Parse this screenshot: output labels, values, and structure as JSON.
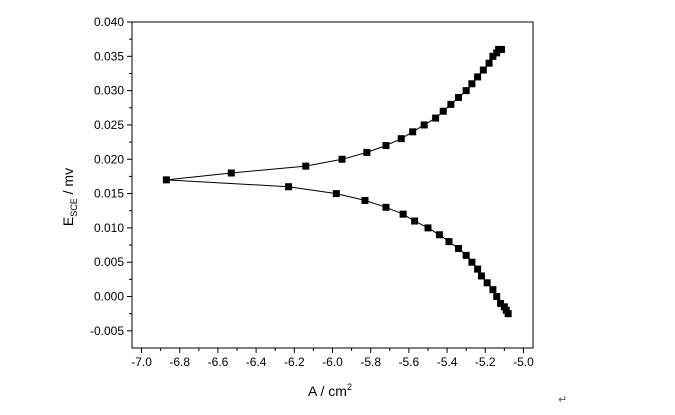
{
  "chart_data": {
    "type": "scatter",
    "title": "",
    "xlabel_main": "A / cm",
    "xlabel_sup": "2",
    "ylabel_main": "E",
    "ylabel_sub": "SCE",
    "ylabel_unit": " / mv",
    "xlim": [
      -7.05,
      -4.95
    ],
    "ylim": [
      -0.0075,
      0.04
    ],
    "xticks": [
      -7.0,
      -6.8,
      -6.6,
      -6.4,
      -6.2,
      -6.0,
      -5.8,
      -5.6,
      -5.4,
      -5.2,
      -5.0
    ],
    "xtick_labels": [
      "-7.0",
      "-6.8",
      "-6.6",
      "-6.4",
      "-6.2",
      "-6.0",
      "-5.8",
      "-5.6",
      "-5.4",
      "-5.2",
      "-5.0"
    ],
    "yticks": [
      -0.005,
      0.0,
      0.005,
      0.01,
      0.015,
      0.02,
      0.025,
      0.03,
      0.035,
      0.04
    ],
    "ytick_labels": [
      "-0.005",
      "0.000",
      "0.005",
      "0.010",
      "0.015",
      "0.020",
      "0.025",
      "0.030",
      "0.035",
      "0.040"
    ],
    "grid": false,
    "marker": "square",
    "series": [
      {
        "x": [
          -6.87,
          -6.53,
          -6.14,
          -5.95,
          -5.82,
          -5.72,
          -5.64,
          -5.58,
          -5.52,
          -5.46,
          -5.42,
          -5.38,
          -5.34,
          -5.3,
          -5.27,
          -5.24,
          -5.21,
          -5.18,
          -5.16,
          -5.14,
          -5.13,
          -5.115
        ],
        "y": [
          0.017,
          0.018,
          0.019,
          0.02,
          0.021,
          0.022,
          0.023,
          0.024,
          0.025,
          0.026,
          0.027,
          0.028,
          0.029,
          0.03,
          0.031,
          0.032,
          0.033,
          0.034,
          0.035,
          0.0355,
          0.036,
          0.036
        ]
      },
      {
        "x": [
          -6.23,
          -5.98,
          -5.83,
          -5.72,
          -5.63,
          -5.57,
          -5.5,
          -5.44,
          -5.39,
          -5.34,
          -5.3,
          -5.27,
          -5.24,
          -5.22,
          -5.19,
          -5.16,
          -5.14,
          -5.12,
          -5.1,
          -5.09,
          -5.08
        ],
        "y": [
          0.016,
          0.015,
          0.014,
          0.013,
          0.012,
          0.011,
          0.01,
          0.009,
          0.008,
          0.007,
          0.006,
          0.005,
          0.004,
          0.003,
          0.002,
          0.001,
          0.0,
          -0.001,
          -0.0015,
          -0.002,
          -0.0025
        ]
      }
    ]
  },
  "misc": {
    "paragraph_mark": "↵"
  }
}
